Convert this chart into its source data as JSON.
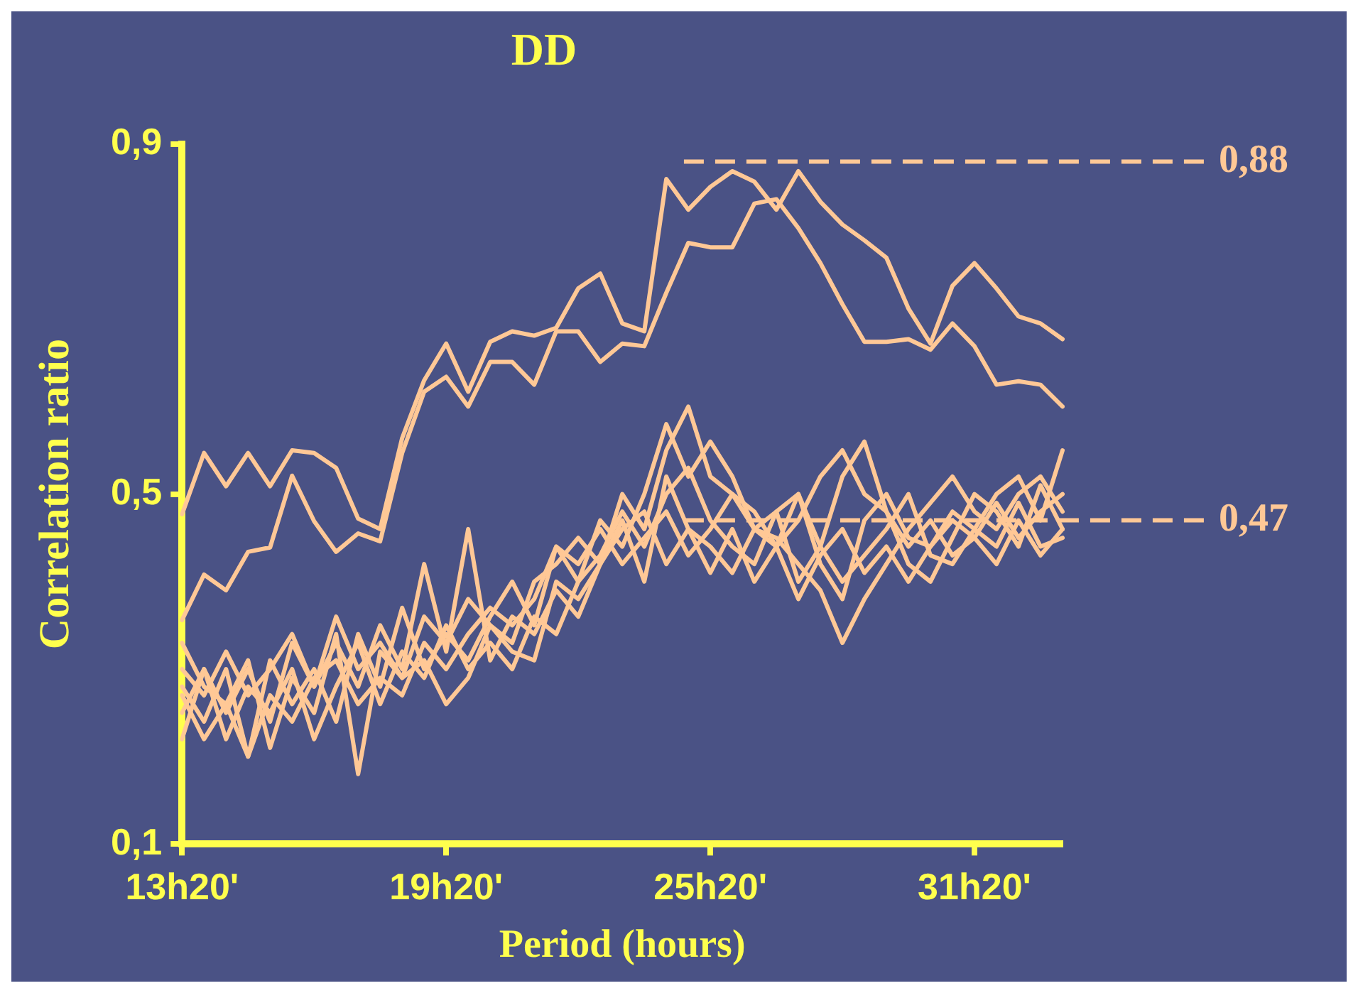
{
  "chart_data": {
    "type": "line",
    "title": "DD",
    "xlabel": "Period (hours)",
    "ylabel": "Correlation ratio",
    "categories": [
      "13h20'",
      null,
      null,
      null,
      null,
      null,
      null,
      null,
      null,
      null,
      null,
      null,
      "19h20'",
      null,
      null,
      null,
      null,
      null,
      null,
      null,
      null,
      null,
      null,
      null,
      "25h20'",
      null,
      null,
      null,
      null,
      null,
      null,
      null,
      null,
      null,
      null,
      null,
      "31h20'",
      null,
      null,
      null,
      null
    ],
    "series": [
      {
        "color": "#ffc896",
        "values": [
          0.477,
          0.547,
          0.509,
          0.547,
          0.509,
          0.55,
          0.547,
          0.53,
          0.472,
          0.46,
          0.564,
          0.63,
          0.672,
          0.617,
          0.674,
          0.686,
          0.681,
          0.69,
          0.735,
          0.752,
          0.695,
          0.686,
          0.86,
          0.825,
          0.851,
          0.869,
          0.857,
          0.825,
          0.869,
          0.834,
          0.808,
          0.79,
          0.77,
          0.712,
          0.672,
          0.738,
          0.764,
          0.735,
          0.703,
          0.695,
          0.677
        ]
      },
      {
        "color": "#ffc896",
        "values": [
          0.356,
          0.408,
          0.39,
          0.434,
          0.439,
          0.521,
          0.469,
          0.434,
          0.455,
          0.446,
          0.547,
          0.617,
          0.634,
          0.6,
          0.651,
          0.651,
          0.625,
          0.686,
          0.686,
          0.651,
          0.672,
          0.669,
          0.73,
          0.787,
          0.782,
          0.782,
          0.832,
          0.837,
          0.804,
          0.764,
          0.717,
          0.674,
          0.674,
          0.677,
          0.665,
          0.695,
          0.669,
          0.625,
          0.629,
          0.625,
          0.6
        ]
      },
      {
        "color": "#ffc896",
        "values": [
          0.22,
          0.3,
          0.25,
          0.3,
          0.24,
          0.33,
          0.28,
          0.36,
          0.3,
          0.33,
          0.29,
          0.36,
          0.33,
          0.38,
          0.35,
          0.33,
          0.4,
          0.42,
          0.45,
          0.42,
          0.5,
          0.46,
          0.55,
          0.6,
          0.52,
          0.5,
          0.46,
          0.44,
          0.5,
          0.42,
          0.38,
          0.47,
          0.5,
          0.45,
          0.44,
          0.48,
          0.46,
          0.5,
          0.52,
          0.47,
          0.55
        ]
      },
      {
        "color": "#ffc896",
        "values": [
          0.28,
          0.24,
          0.3,
          0.2,
          0.31,
          0.26,
          0.3,
          0.24,
          0.34,
          0.28,
          0.37,
          0.3,
          0.34,
          0.31,
          0.36,
          0.4,
          0.35,
          0.44,
          0.4,
          0.47,
          0.44,
          0.5,
          0.58,
          0.52,
          0.56,
          0.52,
          0.46,
          0.48,
          0.4,
          0.44,
          0.52,
          0.56,
          0.48,
          0.42,
          0.4,
          0.45,
          0.5,
          0.48,
          0.44,
          0.51,
          0.46
        ]
      },
      {
        "color": "#ffc896",
        "values": [
          0.25,
          0.3,
          0.22,
          0.28,
          0.25,
          0.3,
          0.22,
          0.28,
          0.33,
          0.26,
          0.32,
          0.29,
          0.35,
          0.3,
          0.33,
          0.3,
          0.36,
          0.34,
          0.4,
          0.43,
          0.48,
          0.44,
          0.5,
          0.53,
          0.47,
          0.44,
          0.42,
          0.48,
          0.5,
          0.44,
          0.4,
          0.43,
          0.46,
          0.5,
          0.43,
          0.42,
          0.46,
          0.44,
          0.49,
          0.44,
          0.45
        ]
      },
      {
        "color": "#ffc896",
        "values": [
          0.3,
          0.27,
          0.32,
          0.27,
          0.3,
          0.34,
          0.28,
          0.33,
          0.28,
          0.35,
          0.3,
          0.42,
          0.32,
          0.46,
          0.31,
          0.36,
          0.34,
          0.39,
          0.36,
          0.42,
          0.46,
          0.48,
          0.42,
          0.46,
          0.44,
          0.41,
          0.46,
          0.45,
          0.42,
          0.39,
          0.33,
          0.38,
          0.42,
          0.46,
          0.49,
          0.52,
          0.48,
          0.46,
          0.5,
          0.52,
          0.48
        ]
      },
      {
        "color": "#ffc896",
        "values": [
          0.27,
          0.22,
          0.26,
          0.2,
          0.27,
          0.24,
          0.29,
          0.31,
          0.26,
          0.29,
          0.27,
          0.33,
          0.3,
          0.34,
          0.37,
          0.35,
          0.38,
          0.44,
          0.42,
          0.46,
          0.42,
          0.45,
          0.48,
          0.43,
          0.46,
          0.5,
          0.48,
          0.44,
          0.47,
          0.52,
          0.55,
          0.5,
          0.48,
          0.44,
          0.47,
          0.43,
          0.45,
          0.49,
          0.45,
          0.48,
          0.5
        ]
      },
      {
        "color": "#ffc896",
        "values": [
          0.33,
          0.28,
          0.26,
          0.31,
          0.21,
          0.29,
          0.25,
          0.34,
          0.18,
          0.32,
          0.29,
          0.31,
          0.26,
          0.29,
          0.35,
          0.32,
          0.31,
          0.4,
          0.38,
          0.42,
          0.47,
          0.4,
          0.52,
          0.46,
          0.41,
          0.46,
          0.4,
          0.44,
          0.38,
          0.43,
          0.46,
          0.41,
          0.44,
          0.4,
          0.44,
          0.47,
          0.45,
          0.42,
          0.47,
          0.43,
          0.46
        ]
      }
    ],
    "ylim": [
      0.1,
      0.9
    ],
    "yticks": [
      {
        "value": 0.1,
        "label": "0,1"
      },
      {
        "value": 0.5,
        "label": "0,5"
      },
      {
        "value": 0.9,
        "label": "0,9"
      }
    ],
    "ref_lines": [
      {
        "axis": "y",
        "value": 0.88,
        "label": "0,88",
        "color": "#ffc896",
        "line_style": "dashed"
      },
      {
        "axis": "y",
        "value": 0.47,
        "label": "0,47",
        "color": "#ffc896",
        "line_style": "dashed"
      }
    ],
    "grid": false,
    "legend": false,
    "marker": "none",
    "line_style": "solid"
  }
}
